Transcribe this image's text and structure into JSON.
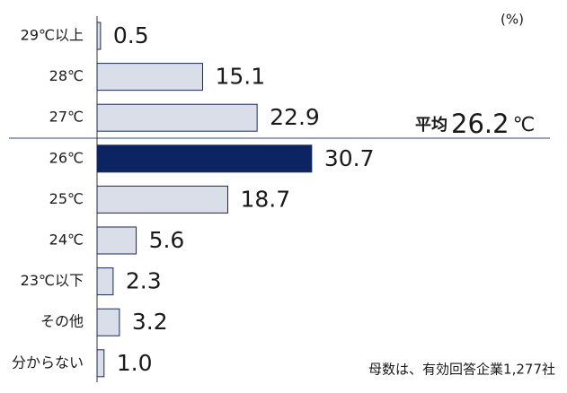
{
  "chart_data": {
    "type": "bar",
    "orientation": "horizontal",
    "unit": "(%)",
    "categories": [
      "29℃以上",
      "28℃",
      "27℃",
      "26℃",
      "25℃",
      "24℃",
      "23℃以下",
      "その他",
      "分からない"
    ],
    "values": [
      0.5,
      15.1,
      22.9,
      30.7,
      18.7,
      5.6,
      2.3,
      3.2,
      1.0
    ],
    "value_labels": [
      "0.5",
      "15.1",
      "22.9",
      "30.7",
      "18.7",
      "5.6",
      "2.3",
      "3.2",
      "1.0"
    ],
    "colors": [
      "#d9dee8",
      "#d9dee8",
      "#d9dee8",
      "#0c2461",
      "#d9dee8",
      "#d9dee8",
      "#d9dee8",
      "#d9dee8",
      "#d9dee8"
    ],
    "average": {
      "label": "平均",
      "value": 26.2,
      "unit": "℃"
    },
    "note": "母数は、有効回答企業1,277社"
  }
}
